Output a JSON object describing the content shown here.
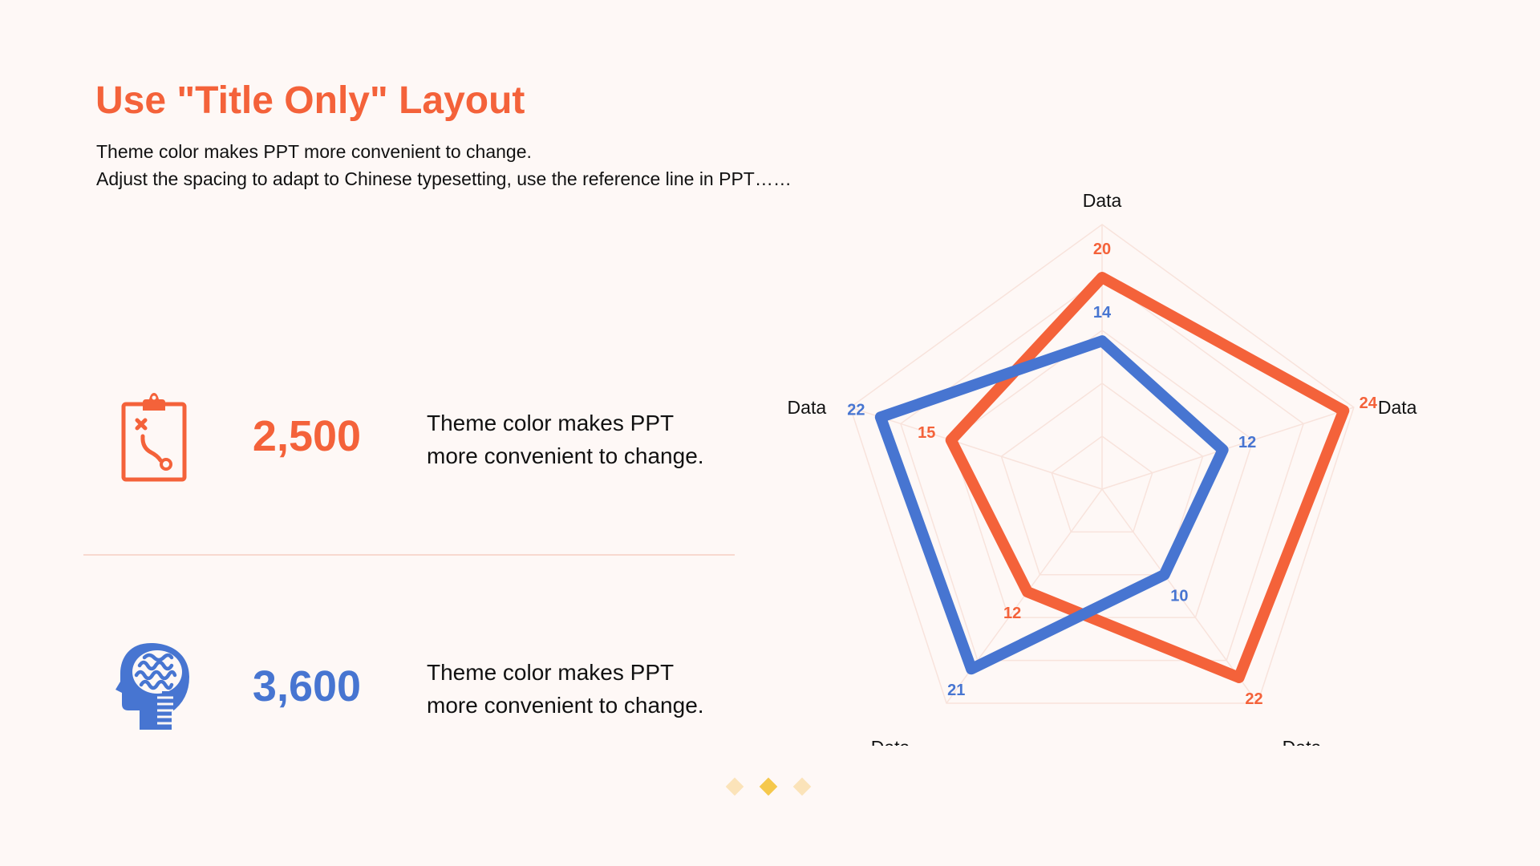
{
  "header": {
    "title": "Use \"Title Only\" Layout",
    "subtitle_lines": [
      "Theme color makes PPT more convenient to change.",
      "Adjust the spacing to adapt to Chinese typesetting, use the reference line in PPT……"
    ]
  },
  "stats": [
    {
      "icon": "clipboard-strategy-icon",
      "value": "2,500",
      "color": "#F4623A",
      "desc_lines": [
        "Theme color makes PPT",
        "more convenient to change."
      ]
    },
    {
      "icon": "brain-head-icon",
      "value": "3,600",
      "color": "#4775D1",
      "desc_lines": [
        "Theme color makes PPT",
        "more convenient to change."
      ]
    }
  ],
  "chart_data": {
    "type": "radar",
    "categories": [
      "Data",
      "Data",
      "Data",
      "Data",
      "Data"
    ],
    "range": [
      0,
      25
    ],
    "grid_levels": 5,
    "series": [
      {
        "color": "#F4623A",
        "values": [
          20,
          24,
          22,
          12,
          15
        ]
      },
      {
        "color": "#4775D1",
        "values": [
          14,
          12,
          10,
          21,
          22
        ]
      }
    ],
    "data_labels": true,
    "legend": "none"
  },
  "pagination": {
    "count": 3,
    "active": 1,
    "colors": {
      "active": "#F5C84C",
      "inactive": "#FBE3B9"
    }
  },
  "colors": {
    "accent": "#F4623A",
    "secondary": "#4775D1",
    "background": "#FEF8F6",
    "grid": "#F8E3DC"
  }
}
